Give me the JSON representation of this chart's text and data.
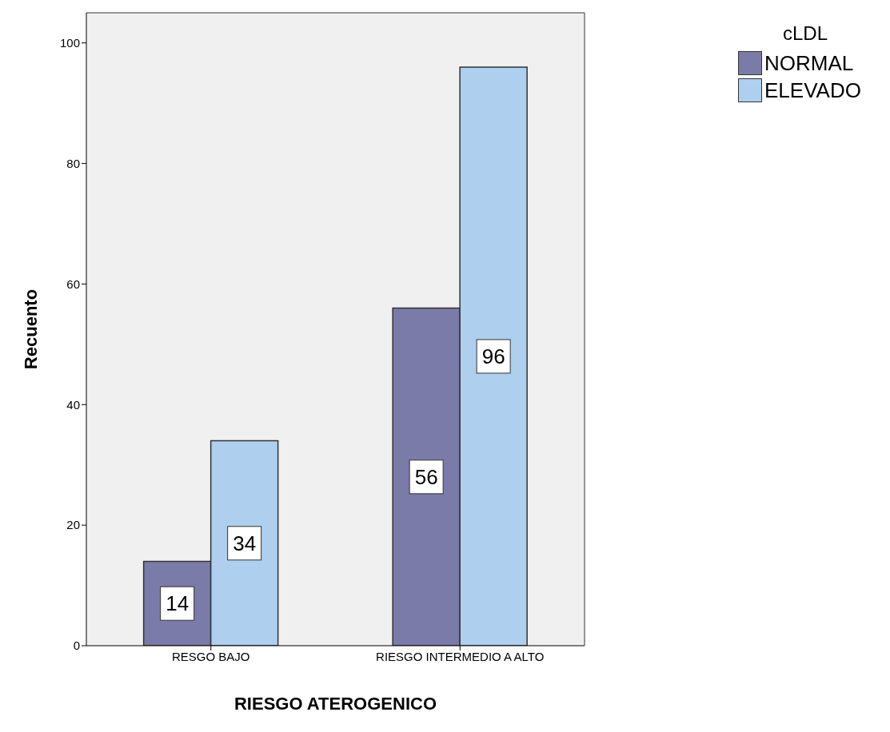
{
  "chart_data": {
    "type": "bar",
    "xlabel": "RIESGO ATEROGENICO",
    "ylabel": "Recuento",
    "legend_title": "cLDL",
    "categories": [
      "RESGO BAJO",
      "RIESGO INTERMEDIO A ALTO"
    ],
    "series": [
      {
        "name": "NORMAL",
        "color": "#7b7baa",
        "values": [
          14,
          56
        ]
      },
      {
        "name": "ELEVADO",
        "color": "#aecfed",
        "values": [
          34,
          96
        ]
      }
    ],
    "ylim": [
      0,
      105
    ],
    "yticks": [
      0,
      20,
      40,
      60,
      80,
      100
    ],
    "data_labels": true,
    "legend": "top right"
  }
}
